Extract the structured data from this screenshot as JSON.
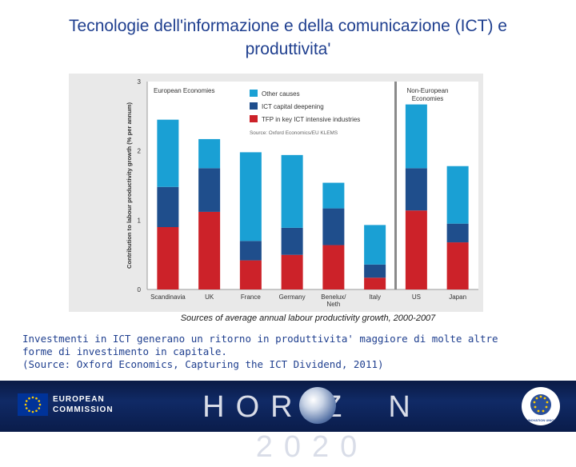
{
  "title": "Tecnologie dell'informazione e della comunicazione (ICT) e produttivita'",
  "chart_data": {
    "type": "bar",
    "stacked": true,
    "ylabel": "Contribution to labour productivity growth (% per annum)",
    "ylim": [
      0,
      3
    ],
    "yticks": [
      "0",
      "1",
      "2",
      "3"
    ],
    "categories": [
      "Scandinavia",
      "UK",
      "France",
      "Germany",
      "Benelux/Neth",
      "Italy",
      "US",
      "Japan"
    ],
    "category_labels": [
      [
        "Scandinavia"
      ],
      [
        "UK"
      ],
      [
        "France"
      ],
      [
        "Germany"
      ],
      [
        "Benelux/",
        "Neth"
      ],
      [
        "Italy"
      ],
      [
        "US"
      ],
      [
        "Japan"
      ]
    ],
    "series": [
      {
        "name": "TFP in key ICT intensive industries",
        "color": "#cc2229",
        "values": [
          0.9,
          1.12,
          0.42,
          0.5,
          0.64,
          0.17,
          1.14,
          0.68
        ]
      },
      {
        "name": "ICT capital deepening",
        "color": "#1f4e8c",
        "values": [
          0.58,
          0.63,
          0.28,
          0.39,
          0.53,
          0.19,
          0.61,
          0.27
        ]
      },
      {
        "name": "Other causes",
        "color": "#1aa0d4",
        "values": [
          0.97,
          0.42,
          1.28,
          1.05,
          0.37,
          0.57,
          0.92,
          0.83
        ]
      }
    ],
    "legend_order": [
      "Other causes",
      "ICT capital deepening",
      "TFP in key ICT intensive industries"
    ],
    "group_labels": {
      "left": "European Economies",
      "right_line1": "Non-European",
      "right_line2": "Economies"
    },
    "source": "Source: Oxford Economics/EU KLEMS"
  },
  "caption": "Sources of average annual labour productivity growth, 2000-2007",
  "body_lines": [
    "Investmenti in ICT generano un ritorno in produttivita' maggiore di molte altre",
    "forme di investimento in capitale.",
    "(Source: Oxford Economics, Capturing the ICT Dividend, 2011)"
  ],
  "footer": {
    "ec_line1": "EUROPEAN",
    "ec_line2": "COMMISSION",
    "horizon_left": "HORIZ",
    "horizon_right": "N 2020",
    "iu_text": "INNOVATION UNION"
  }
}
